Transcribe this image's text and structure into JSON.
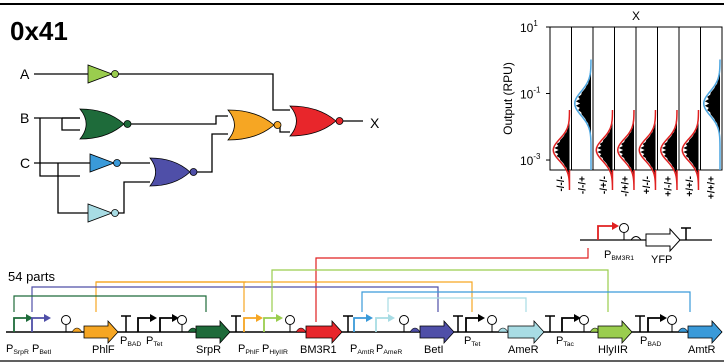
{
  "title": "0x41",
  "circuit": {
    "inputs": [
      "A",
      "B",
      "C"
    ],
    "output": "X",
    "gates": [
      {
        "id": "not-a",
        "type": "NOT",
        "color": "#9ACD4E"
      },
      {
        "id": "nor-b-c",
        "type": "NOR",
        "color": "#1E6B3A"
      },
      {
        "id": "not-c-1",
        "type": "NOT",
        "color": "#3A9AD9"
      },
      {
        "id": "not-c-2",
        "type": "NOT",
        "color": "#A8DCE4"
      },
      {
        "id": "nor-mid",
        "type": "NOR",
        "color": "#4F4FA8"
      },
      {
        "id": "nor-orange",
        "type": "NOR",
        "color": "#F6A623"
      },
      {
        "id": "nor-out",
        "type": "NOR",
        "color": "#E8262B"
      }
    ]
  },
  "histogram_panel": {
    "title": "X",
    "ylabel": "Output (RPU)",
    "yticks": [
      {
        "base": "10",
        "exp": "1"
      },
      {
        "base": "10",
        "exp": "-1"
      },
      {
        "base": "10",
        "exp": "-3"
      }
    ],
    "states": [
      "-/-/-",
      "-/-/+",
      "-/+/-",
      "-/+/+",
      "+/-/-",
      "+/-/+",
      "+/+/-",
      "+/+/+"
    ],
    "on_states": [
      "-/-/+",
      "+/+/+"
    ],
    "median_log10_rpu": [
      -2.7,
      -1.3,
      -2.7,
      -2.7,
      -2.7,
      -2.7,
      -2.7,
      -1.3
    ],
    "colors": {
      "on": "#4DA6E0",
      "off": "#E02020",
      "hist": "#000000"
    }
  },
  "output_module": {
    "promoter": "P",
    "promoter_sub": "BM3R1",
    "reporter": "YFP"
  },
  "parts_label": "54 parts",
  "construct": {
    "labels": [
      {
        "text": "P",
        "sub": "SrpR"
      },
      {
        "text": "P",
        "sub": "BetI"
      },
      {
        "text": "PhlF",
        "sub": ""
      },
      {
        "text": "P",
        "sub": "BAD"
      },
      {
        "text": "P",
        "sub": "Tet"
      },
      {
        "text": "SrpR",
        "sub": ""
      },
      {
        "text": "P",
        "sub": "PhlF"
      },
      {
        "text": "P",
        "sub": "HlyIIR"
      },
      {
        "text": "BM3R1",
        "sub": ""
      },
      {
        "text": "P",
        "sub": "AmtR"
      },
      {
        "text": "P",
        "sub": "AmeR"
      },
      {
        "text": "BetI",
        "sub": ""
      },
      {
        "text": "P",
        "sub": "Tet"
      },
      {
        "text": "AmeR",
        "sub": ""
      },
      {
        "text": "P",
        "sub": "Tac"
      },
      {
        "text": "HlyIIR",
        "sub": ""
      },
      {
        "text": "P",
        "sub": "BAD"
      },
      {
        "text": "AmtR",
        "sub": ""
      }
    ],
    "genes": [
      {
        "name": "PhlF",
        "color": "#F6A623"
      },
      {
        "name": "SrpR",
        "color": "#1E6B3A"
      },
      {
        "name": "BM3R1",
        "color": "#E8262B"
      },
      {
        "name": "BetI",
        "color": "#4F4FA8"
      },
      {
        "name": "AmeR",
        "color": "#A8DCE4"
      },
      {
        "name": "HlyIIR",
        "color": "#9ACD4E"
      },
      {
        "name": "AmtR",
        "color": "#3A9AD9"
      }
    ]
  }
}
